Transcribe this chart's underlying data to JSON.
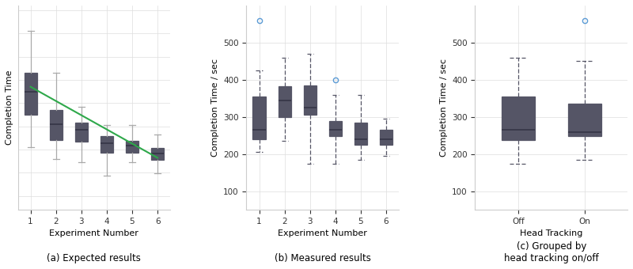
{
  "expected": {
    "medians": [
      375,
      305,
      293,
      263,
      258,
      242
    ],
    "q1": [
      325,
      270,
      267,
      243,
      243,
      228
    ],
    "q3": [
      415,
      335,
      307,
      278,
      268,
      253
    ],
    "whislo": [
      255,
      230,
      222,
      193,
      222,
      198
    ],
    "whishi": [
      505,
      415,
      342,
      302,
      302,
      282
    ],
    "trend_x": [
      1,
      6
    ],
    "trend_y": [
      385,
      232
    ],
    "ylabel": "Completion Time",
    "xlabel": "Experiment Number",
    "title": "(a) Expected results",
    "xticks": [
      1,
      2,
      3,
      4,
      5,
      6
    ],
    "ylim": [
      120,
      560
    ]
  },
  "measured": {
    "medians": [
      265,
      345,
      325,
      265,
      240,
      240
    ],
    "q1": [
      240,
      300,
      305,
      248,
      225,
      225
    ],
    "q3": [
      355,
      383,
      385,
      290,
      285,
      265
    ],
    "whislo": [
      205,
      235,
      175,
      175,
      185,
      195
    ],
    "whishi": [
      425,
      460,
      470,
      360,
      360,
      295
    ],
    "fliers_hi": [
      [
        560
      ],
      [],
      [],
      [
        400
      ],
      [],
      []
    ],
    "ylabel": "Completion Time / sec",
    "xlabel": "Experiment Number",
    "title": "(b) Measured results",
    "xticks": [
      1,
      2,
      3,
      4,
      5,
      6
    ],
    "ylim": [
      50,
      600
    ],
    "yticks": [
      100,
      200,
      300,
      400,
      500
    ]
  },
  "grouped": {
    "medians": [
      265,
      260
    ],
    "q1": [
      237,
      248
    ],
    "q3": [
      355,
      335
    ],
    "whislo": [
      175,
      185
    ],
    "whishi": [
      460,
      450
    ],
    "fliers_hi": [
      [],
      [
        560
      ]
    ],
    "ylabel": "Completion Time / sec",
    "xlabel": "Head Tracking",
    "title_line1": "(c) Grouped by",
    "title_line2": "head tracking on/off",
    "xticks": [
      "Off",
      "On"
    ],
    "ylim": [
      50,
      600
    ],
    "yticks": [
      100,
      200,
      300,
      400,
      500
    ]
  },
  "box_facecolor": "#a8c4e0",
  "box_edgecolor": "#555566",
  "whisker_color_expected": "#aaaaaa",
  "median_color": "#333344",
  "flier_color": "#5b9bd5",
  "green_line_color": "#2ea84a",
  "background_color": "#ffffff",
  "grid_color": "#dddddd",
  "cap_dashes": [
    4,
    2
  ]
}
